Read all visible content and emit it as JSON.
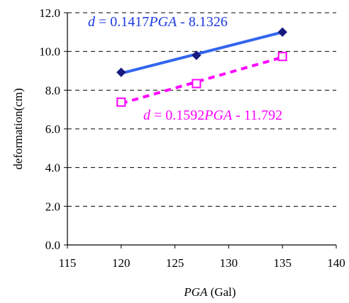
{
  "chart_data": {
    "type": "scatter",
    "xlabel_italic": "PGA",
    "xlabel_rest": " (Gal)",
    "ylabel": "deformation(cm)",
    "xlim": [
      115,
      140
    ],
    "ylim": [
      0,
      12
    ],
    "x_ticks": [
      "115",
      "120",
      "125",
      "130",
      "135",
      "140"
    ],
    "y_ticks": [
      "0.0",
      "2.0",
      "4.0",
      "6.0",
      "8.0",
      "10.0",
      "12.0"
    ],
    "grid": "horizontal dashed",
    "series": [
      {
        "x": [
          120,
          127,
          135
        ],
        "y": [
          8.92,
          9.8,
          11.0
        ],
        "marker": "filled-diamond",
        "line": "solid",
        "color": "#3366ee",
        "marker_color": "#1a1a80",
        "fit": {
          "slope": 0.1417,
          "intercept": -8.1326
        },
        "equation": {
          "d": "d",
          "eq": " = 0.1417",
          "pga": "PGA",
          "rest": " - 8.1326"
        }
      },
      {
        "x": [
          120,
          127,
          135
        ],
        "y": [
          7.38,
          8.34,
          9.74
        ],
        "marker": "open-square",
        "line": "dashed",
        "color": "#ff00ff",
        "marker_color": "#ff00ff",
        "fit": {
          "slope": 0.1592,
          "intercept": -11.792
        },
        "equation": {
          "d": "d",
          "eq": " = 0.1592",
          "pga": "PGA",
          "rest": " - 11.792"
        }
      }
    ]
  }
}
